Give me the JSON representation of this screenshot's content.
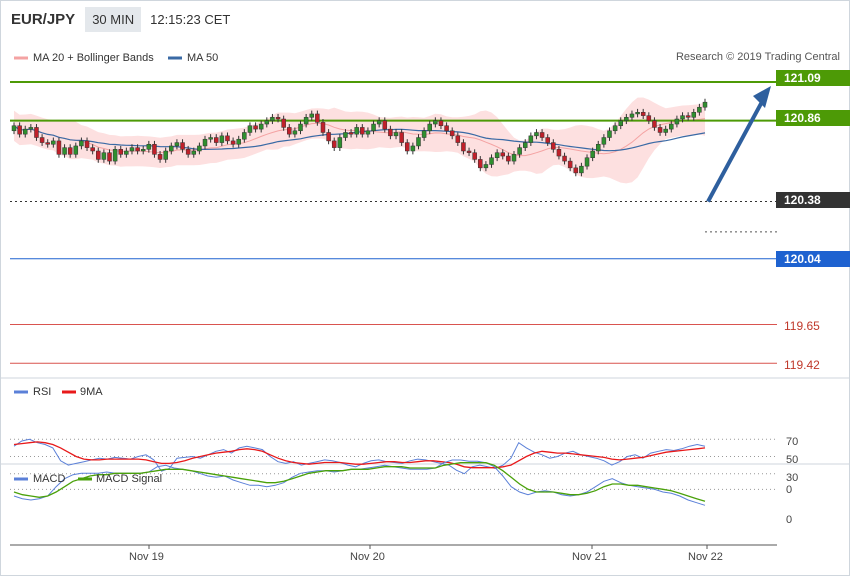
{
  "header": {
    "symbol": "EUR/JPY",
    "timeframe": "30 MIN",
    "time": "12:15:23 CET"
  },
  "legend": {
    "bb_label": "MA 20 + Bollinger Bands",
    "ma50_label": "MA 50",
    "copyright": "Research © 2019 Trading Central"
  },
  "colors": {
    "green": "#4d9a06",
    "red": "#d9534f",
    "blue": "#1e62d0",
    "dark": "#333333",
    "band": "#fde0e0",
    "bb_line": "#f4a3a3",
    "ma50": "#3a6aa5",
    "arrow": "#2e5f9e",
    "rsi": "#5b80d8",
    "ma9": "#e8191a",
    "macd": "#5b80d8",
    "signal": "#4aa10a"
  },
  "levels": [
    {
      "value": "121.09",
      "style": "green-tag"
    },
    {
      "value": "120.86",
      "style": "green-tag"
    },
    {
      "value": "120.38",
      "style": "dark-tag"
    },
    {
      "value": "120.04",
      "style": "blue-tag"
    },
    {
      "value": "119.65",
      "style": "red-line"
    },
    {
      "value": "119.42",
      "style": "red-line"
    }
  ],
  "rsi_panel": {
    "rsi_label": "RSI",
    "ma_label": "9MA",
    "ticks": [
      "70",
      "50",
      "30"
    ]
  },
  "macd_panel": {
    "macd_label": "MACD",
    "signal_label": "MACD Signal",
    "ticks": [
      "0",
      "0"
    ]
  },
  "x_axis": {
    "labels": [
      "Nov 19",
      "Nov 20",
      "Nov 21",
      "Nov 22"
    ]
  },
  "chart_data": {
    "type": "candlestick",
    "title": "EUR/JPY 30 MIN",
    "ylim": [
      119.35,
      121.25
    ],
    "close": [
      120.83,
      120.78,
      120.81,
      120.82,
      120.76,
      120.73,
      120.72,
      120.74,
      120.66,
      120.7,
      120.66,
      120.71,
      120.74,
      120.7,
      120.68,
      120.63,
      120.67,
      120.62,
      120.69,
      120.66,
      120.68,
      120.7,
      120.68,
      120.69,
      120.72,
      120.66,
      120.63,
      120.68,
      120.71,
      120.73,
      120.69,
      120.66,
      120.68,
      120.71,
      120.75,
      120.76,
      120.73,
      120.77,
      120.74,
      120.72,
      120.75,
      120.79,
      120.83,
      120.81,
      120.84,
      120.86,
      120.88,
      120.87,
      120.82,
      120.78,
      120.8,
      120.84,
      120.88,
      120.9,
      120.85,
      120.79,
      120.74,
      120.7,
      120.76,
      120.79,
      120.78,
      120.82,
      120.78,
      120.8,
      120.84,
      120.86,
      120.81,
      120.77,
      120.79,
      120.73,
      120.68,
      120.71,
      120.76,
      120.8,
      120.84,
      120.86,
      120.83,
      120.8,
      120.77,
      120.73,
      120.68,
      120.67,
      120.63,
      120.58,
      120.6,
      120.64,
      120.67,
      120.65,
      120.62,
      120.66,
      120.7,
      120.73,
      120.77,
      120.79,
      120.76,
      120.73,
      120.69,
      120.65,
      120.62,
      120.58,
      120.55,
      120.59,
      120.64,
      120.68,
      120.72,
      120.76,
      120.8,
      120.83,
      120.86,
      120.88,
      120.9,
      120.91,
      120.89,
      120.86,
      120.82,
      120.79,
      120.81,
      120.84,
      120.87,
      120.89,
      120.88,
      120.91,
      120.94,
      120.97
    ],
    "series": [
      {
        "name": "MA 20 + Bollinger Bands",
        "role": "middle band"
      },
      {
        "name": "MA 50"
      },
      {
        "name": "RSI"
      },
      {
        "name": "9MA"
      },
      {
        "name": "MACD"
      },
      {
        "name": "MACD Signal"
      }
    ],
    "rsi": [
      62,
      68,
      70,
      66,
      64,
      60,
      45,
      40,
      42,
      44,
      46,
      48,
      47,
      49,
      48,
      47,
      50,
      52,
      46,
      33,
      36,
      48,
      49,
      50,
      48,
      52,
      56,
      58,
      54,
      60,
      62,
      60,
      58,
      50,
      44,
      42,
      44,
      40,
      42,
      44,
      46,
      45,
      43,
      40,
      38,
      42,
      45,
      46,
      44,
      43,
      42,
      45,
      47,
      46,
      44,
      42,
      40,
      34,
      30,
      38,
      40,
      38,
      36,
      40,
      48,
      66,
      60,
      55,
      52,
      48,
      50,
      54,
      56,
      52,
      50,
      48,
      45,
      40,
      44,
      50,
      52,
      48,
      54,
      56,
      58,
      57,
      59,
      62,
      64,
      62
    ],
    "rsi_ma": [
      64,
      65,
      66,
      67,
      66,
      64,
      60,
      55,
      50,
      47,
      46,
      46,
      47,
      47,
      47,
      47,
      47,
      46,
      44,
      42,
      42,
      43,
      45,
      48,
      50,
      52,
      54,
      55,
      56,
      58,
      59,
      58,
      56,
      52,
      48,
      45,
      43,
      42,
      41,
      42,
      43,
      43,
      43,
      42,
      41,
      41,
      42,
      43,
      44,
      44,
      43,
      43,
      44,
      45,
      45,
      44,
      43,
      41,
      38,
      37,
      37,
      37,
      37,
      38,
      40,
      45,
      50,
      54,
      56,
      55,
      54,
      54,
      53,
      52,
      51,
      50,
      49,
      47,
      46,
      47,
      48,
      49,
      51,
      53,
      55,
      56,
      57,
      58,
      59,
      60
    ],
    "macd": [
      0.05,
      0.07,
      0.08,
      0.07,
      0.05,
      -0.02,
      -0.08,
      -0.11,
      -0.12,
      -0.12,
      -0.12,
      -0.13,
      -0.12,
      -0.12,
      -0.12,
      -0.12,
      -0.13,
      -0.17,
      -0.18,
      -0.16,
      -0.15,
      -0.14,
      -0.12,
      -0.1,
      -0.09,
      -0.1,
      -0.07,
      -0.05,
      -0.03,
      -0.03,
      -0.02,
      -0.03,
      -0.05,
      -0.09,
      -0.12,
      -0.13,
      -0.14,
      -0.14,
      -0.13,
      -0.14,
      -0.15,
      -0.15,
      -0.16,
      -0.17,
      -0.18,
      -0.17,
      -0.16,
      -0.15,
      -0.15,
      -0.15,
      -0.16,
      -0.2,
      -0.22,
      -0.22,
      -0.21,
      -0.21,
      -0.2,
      -0.17,
      -0.1,
      -0.02,
      0.02,
      0.04,
      0.02,
      0.01,
      0.02,
      0.04,
      0.05,
      0.04,
      0.02,
      -0.02,
      -0.06,
      -0.08,
      -0.05,
      -0.03,
      -0.02,
      -0.01,
      0.0,
      0.02,
      0.03,
      0.05,
      0.08,
      0.1,
      0.12
    ],
    "macd_signal": [
      0.02,
      0.04,
      0.05,
      0.06,
      0.05,
      0.02,
      -0.02,
      -0.06,
      -0.08,
      -0.1,
      -0.11,
      -0.11,
      -0.12,
      -0.12,
      -0.12,
      -0.12,
      -0.13,
      -0.14,
      -0.15,
      -0.15,
      -0.15,
      -0.14,
      -0.13,
      -0.12,
      -0.11,
      -0.1,
      -0.09,
      -0.08,
      -0.07,
      -0.06,
      -0.05,
      -0.05,
      -0.06,
      -0.08,
      -0.1,
      -0.12,
      -0.13,
      -0.14,
      -0.14,
      -0.14,
      -0.15,
      -0.15,
      -0.15,
      -0.16,
      -0.17,
      -0.17,
      -0.17,
      -0.16,
      -0.16,
      -0.16,
      -0.16,
      -0.18,
      -0.19,
      -0.2,
      -0.2,
      -0.2,
      -0.2,
      -0.18,
      -0.14,
      -0.09,
      -0.04,
      0.0,
      0.02,
      0.02,
      0.02,
      0.03,
      0.04,
      0.04,
      0.03,
      0.01,
      -0.02,
      -0.04,
      -0.04,
      -0.03,
      -0.03,
      -0.02,
      -0.01,
      0.0,
      0.01,
      0.03,
      0.05,
      0.07,
      0.09
    ],
    "x_tick_labels": [
      "Nov 19",
      "Nov 20",
      "Nov 21",
      "Nov 22"
    ],
    "projection": {
      "from": 120.38,
      "to": 121.09
    }
  }
}
